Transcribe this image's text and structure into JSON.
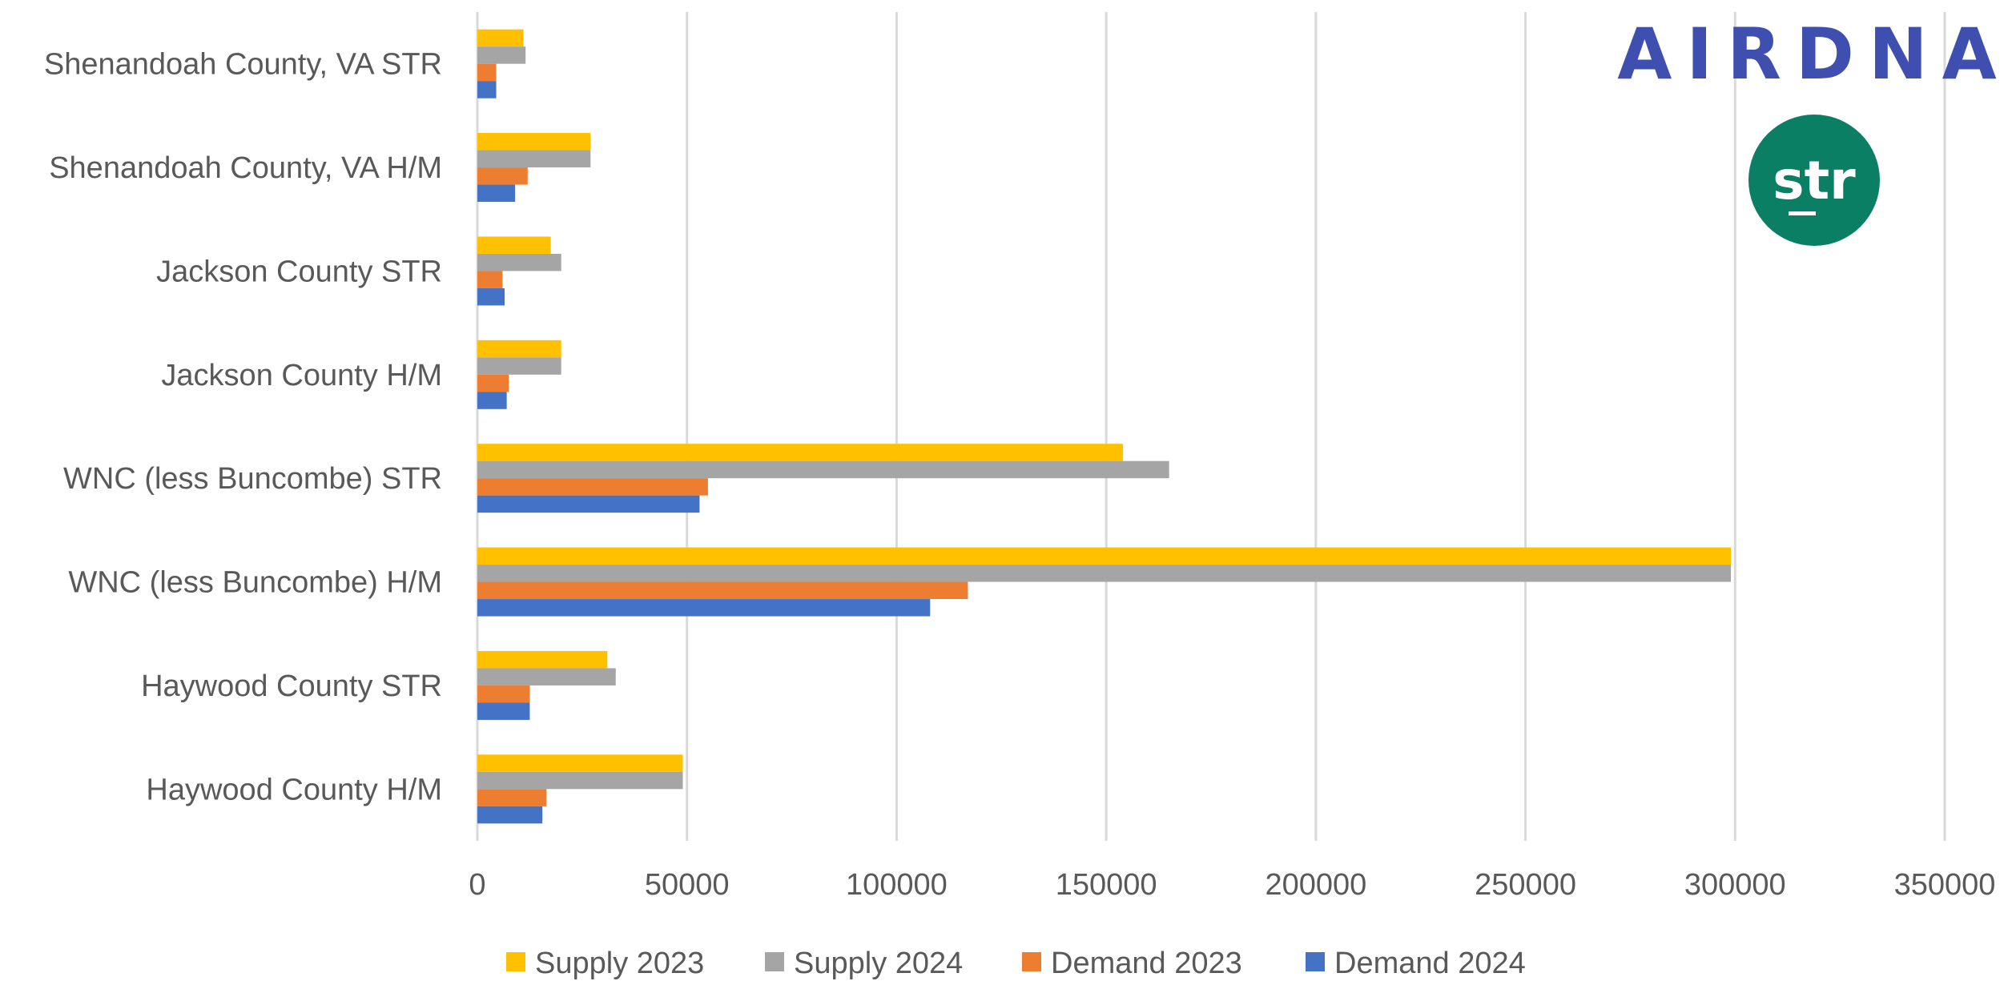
{
  "chart_data": {
    "type": "bar",
    "orientation": "horizontal",
    "categories": [
      "Shenandoah County, VA STR",
      "Shenandoah County, VA H/M",
      "Jackson County STR",
      "Jackson County H/M",
      "WNC (less Buncombe) STR",
      "WNC (less Buncombe) H/M",
      "Haywood County STR",
      "Haywood County H/M"
    ],
    "series": [
      {
        "name": "Supply 2023",
        "color": "#FFC000",
        "values": [
          11000,
          27000,
          17500,
          20000,
          154000,
          299000,
          31000,
          49000
        ]
      },
      {
        "name": "Supply 2024",
        "color": "#A5A5A5",
        "values": [
          11500,
          27000,
          20000,
          20000,
          165000,
          299000,
          33000,
          49000
        ]
      },
      {
        "name": "Demand 2023",
        "color": "#ED7D31",
        "values": [
          4500,
          12000,
          6000,
          7500,
          55000,
          117000,
          12500,
          16500
        ]
      },
      {
        "name": "Demand 2024",
        "color": "#4472C4",
        "values": [
          4500,
          9000,
          6500,
          7000,
          53000,
          108000,
          12500,
          15500
        ]
      }
    ],
    "xlim": [
      0,
      350000
    ],
    "xticks": [
      "0",
      "50000",
      "100000",
      "150000",
      "200000",
      "250000",
      "300000",
      "350000"
    ],
    "title": "",
    "xlabel": "",
    "ylabel": "",
    "grid": "vertical",
    "legend_position": "bottom"
  },
  "logos": {
    "airdna_text": "AIRDNA",
    "airdna_color": "#3F4FB0",
    "str_text": "str",
    "str_color": "#0A7F63"
  }
}
